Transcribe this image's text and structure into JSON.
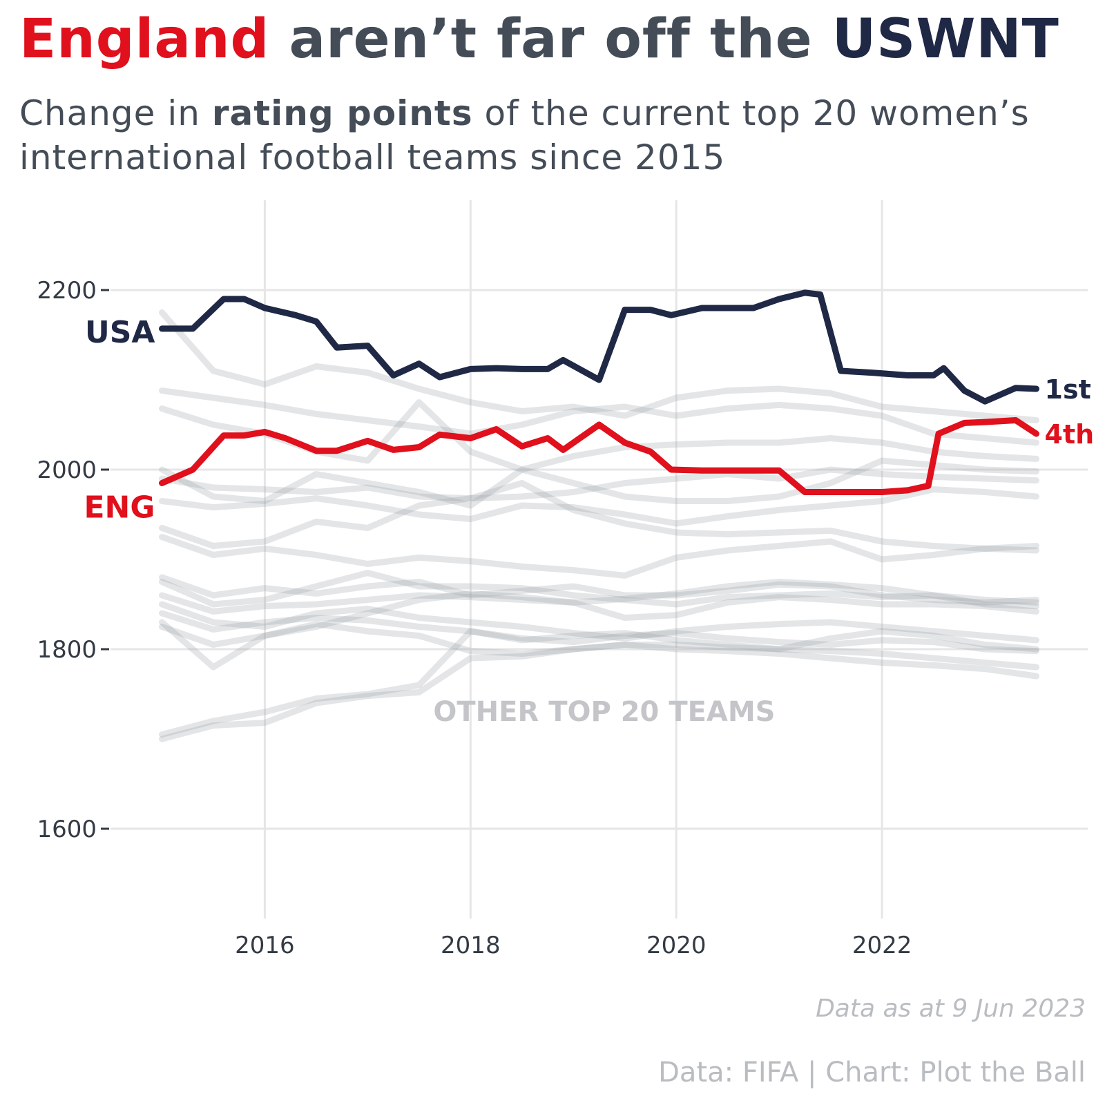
{
  "title": {
    "highlight": "England",
    "middle": " aren’t far off the ",
    "end": "USWNT"
  },
  "subtitle": {
    "before": "Change in ",
    "bold": "rating points",
    "after": " of the current top 20 women’s international football teams since 2015"
  },
  "note": "Data as at 9 Jun 2023",
  "caption": "Data: FIFA | Chart: Plot the Ball",
  "colors": {
    "usa": "#1f2845",
    "eng": "#e0101c",
    "other": "#9aa0a8",
    "grid": "#e6e6e6",
    "text": "#444c57"
  },
  "chart_data": {
    "type": "line",
    "xlim": [
      2014.5,
      2024.0
    ],
    "ylim": [
      1500,
      2300
    ],
    "x_ticks": [
      2016,
      2018,
      2020,
      2022
    ],
    "y_ticks": [
      1600,
      1800,
      2000,
      2200
    ],
    "grid": true,
    "series": [
      {
        "name": "USA",
        "end_label": "1st",
        "highlight": "usa",
        "x": [
          2015.0,
          2015.3,
          2015.6,
          2015.8,
          2016.0,
          2016.3,
          2016.5,
          2016.7,
          2017.0,
          2017.25,
          2017.5,
          2017.7,
          2018.0,
          2018.25,
          2018.5,
          2018.75,
          2018.9,
          2019.25,
          2019.5,
          2019.75,
          2019.95,
          2020.25,
          2020.5,
          2020.75,
          2021.0,
          2021.25,
          2021.4,
          2021.6,
          2021.9,
          2022.25,
          2022.5,
          2022.6,
          2022.8,
          2023.0,
          2023.3,
          2023.5
        ],
        "y": [
          2157,
          2157,
          2190,
          2190,
          2180,
          2172,
          2165,
          2136,
          2138,
          2105,
          2118,
          2103,
          2112,
          2113,
          2112,
          2112,
          2122,
          2100,
          2178,
          2178,
          2172,
          2180,
          2180,
          2180,
          2190,
          2197,
          2195,
          2110,
          2108,
          2105,
          2105,
          2113,
          2088,
          2076,
          2091,
          2090
        ]
      },
      {
        "name": "ENG",
        "end_label": "4th",
        "highlight": "eng",
        "x": [
          2015.0,
          2015.3,
          2015.6,
          2015.8,
          2016.0,
          2016.2,
          2016.5,
          2016.7,
          2017.0,
          2017.25,
          2017.5,
          2017.7,
          2018.0,
          2018.25,
          2018.5,
          2018.75,
          2018.9,
          2019.25,
          2019.5,
          2019.75,
          2019.95,
          2020.25,
          2020.5,
          2020.75,
          2021.0,
          2021.25,
          2021.5,
          2021.75,
          2022.0,
          2022.25,
          2022.45,
          2022.55,
          2022.8,
          2023.0,
          2023.3,
          2023.5
        ],
        "y": [
          1985,
          2000,
          2038,
          2038,
          2042,
          2035,
          2021,
          2021,
          2032,
          2022,
          2025,
          2039,
          2035,
          2045,
          2026,
          2035,
          2022,
          2050,
          2030,
          2020,
          2000,
          1999,
          1999,
          1999,
          1999,
          1975,
          1975,
          1975,
          1975,
          1977,
          1982,
          2040,
          2052,
          2053,
          2055,
          2040
        ]
      }
    ],
    "other_label": "OTHER TOP 20 TEAMS",
    "other_x": [
      2015.0,
      2015.5,
      2016.0,
      2016.5,
      2017.0,
      2017.5,
      2018.0,
      2018.5,
      2019.0,
      2019.5,
      2020.0,
      2020.5,
      2021.0,
      2021.5,
      2022.0,
      2022.5,
      2023.0,
      2023.5
    ],
    "other_teams": [
      [
        2175,
        2110,
        2095,
        2115,
        2108,
        2090,
        2075,
        2065,
        2070,
        2060,
        2080,
        2088,
        2090,
        2085,
        2070,
        2065,
        2060,
        2055
      ],
      [
        2088,
        2080,
        2072,
        2062,
        2055,
        2048,
        2040,
        2050,
        2065,
        2070,
        2060,
        2068,
        2072,
        2068,
        2060,
        2040,
        2035,
        2030
      ],
      [
        2068,
        2050,
        2040,
        2020,
        2010,
        2075,
        2020,
        2000,
        2015,
        2025,
        2028,
        2030,
        2030,
        2035,
        2030,
        2020,
        2015,
        2012
      ],
      [
        2000,
        1970,
        1965,
        1995,
        1985,
        1975,
        1960,
        2000,
        1985,
        1970,
        1965,
        1965,
        1970,
        1985,
        2010,
        2005,
        2000,
        1998
      ],
      [
        1990,
        1980,
        1978,
        1975,
        1980,
        1970,
        1968,
        1970,
        1975,
        1985,
        1990,
        1995,
        1990,
        2000,
        1995,
        1992,
        1990,
        1988
      ],
      [
        1965,
        1958,
        1962,
        1968,
        1960,
        1950,
        1945,
        1960,
        1958,
        1950,
        1940,
        1948,
        1955,
        1960,
        1965,
        1978,
        1975,
        1970
      ],
      [
        1935,
        1915,
        1920,
        1942,
        1935,
        1960,
        1968,
        1985,
        1955,
        1940,
        1930,
        1928,
        1930,
        1932,
        1920,
        1915,
        1912,
        1910
      ],
      [
        1925,
        1905,
        1912,
        1905,
        1895,
        1902,
        1898,
        1892,
        1888,
        1882,
        1902,
        1910,
        1915,
        1920,
        1900,
        1905,
        1912,
        1915
      ],
      [
        1880,
        1860,
        1868,
        1862,
        1870,
        1875,
        1860,
        1865,
        1870,
        1860,
        1860,
        1865,
        1872,
        1870,
        1860,
        1855,
        1852,
        1855
      ],
      [
        1875,
        1850,
        1855,
        1870,
        1885,
        1870,
        1870,
        1868,
        1860,
        1855,
        1850,
        1858,
        1860,
        1862,
        1858,
        1860,
        1850,
        1848
      ],
      [
        1860,
        1842,
        1848,
        1850,
        1855,
        1860,
        1858,
        1855,
        1852,
        1856,
        1862,
        1870,
        1875,
        1872,
        1868,
        1860,
        1855,
        1852
      ],
      [
        1850,
        1830,
        1825,
        1840,
        1845,
        1835,
        1830,
        1825,
        1818,
        1812,
        1820,
        1825,
        1828,
        1830,
        1825,
        1820,
        1815,
        1810
      ],
      [
        1840,
        1822,
        1830,
        1835,
        1832,
        1825,
        1820,
        1812,
        1808,
        1815,
        1818,
        1812,
        1808,
        1805,
        1810,
        1808,
        1800,
        1798
      ],
      [
        1830,
        1780,
        1815,
        1828,
        1820,
        1815,
        1798,
        1795,
        1800,
        1805,
        1800,
        1798,
        1795,
        1790,
        1785,
        1782,
        1778,
        1770
      ],
      [
        1705,
        1720,
        1730,
        1745,
        1750,
        1760,
        1820,
        1810,
        1815,
        1818,
        1810,
        1805,
        1800,
        1812,
        1820,
        1815,
        1805,
        1800
      ],
      [
        1700,
        1715,
        1718,
        1740,
        1748,
        1752,
        1790,
        1792,
        1800,
        1805,
        1805,
        1802,
        1800,
        1798,
        1795,
        1790,
        1785,
        1780
      ],
      [
        1825,
        1805,
        1815,
        1825,
        1840,
        1855,
        1862,
        1858,
        1852,
        1835,
        1838,
        1852,
        1858,
        1855,
        1850,
        1850,
        1848,
        1842
      ]
    ]
  }
}
